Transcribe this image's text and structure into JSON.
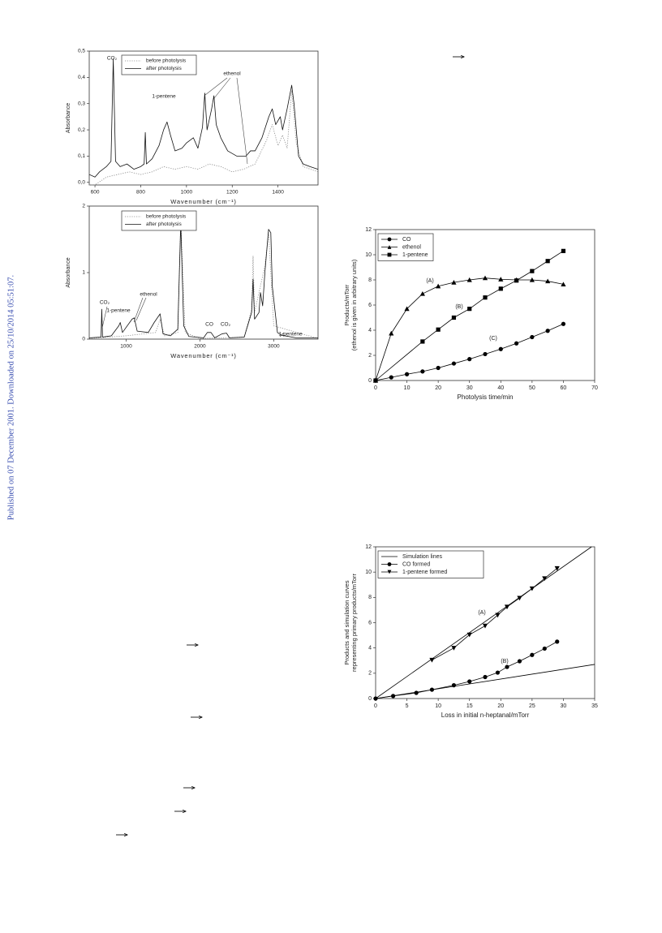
{
  "watermark": "Published on 07 December 2001. Downloaded on 25/10/2014 05:51:07.",
  "chart_data": [
    {
      "type": "line",
      "xlabel": "Wavenumber (cm⁻¹)",
      "ylabel": "Absorbance",
      "xlim": [
        575,
        1575
      ],
      "ylim": [
        -0.01,
        0.5
      ],
      "xticks": [
        600,
        800,
        1000,
        1200,
        1400
      ],
      "yticks": [
        {
          "value": 0,
          "label": "0,0"
        },
        {
          "value": 0.1,
          "label": "0,1"
        },
        {
          "value": 0.2,
          "label": "0,2"
        },
        {
          "value": 0.3,
          "label": "0,3"
        },
        {
          "value": 0.4,
          "label": "0,4"
        },
        {
          "value": 0.5,
          "label": "0,5"
        }
      ],
      "legend": "upper left",
      "series": [
        {
          "name": "before photolysis",
          "color": "#888888",
          "style": "dotted",
          "x": [
            575,
            600,
            650,
            700,
            750,
            800,
            850,
            900,
            950,
            1000,
            1050,
            1100,
            1150,
            1200,
            1250,
            1300,
            1350,
            1375,
            1400,
            1420,
            1440,
            1460,
            1480,
            1510,
            1575
          ],
          "values": [
            -0.01,
            -0.01,
            0.02,
            0.03,
            0.04,
            0.03,
            0.04,
            0.06,
            0.05,
            0.06,
            0.05,
            0.07,
            0.06,
            0.04,
            0.05,
            0.07,
            0.16,
            0.22,
            0.14,
            0.18,
            0.13,
            0.35,
            0.15,
            0.06,
            0.04
          ]
        },
        {
          "name": "after photolysis",
          "color": "#111111",
          "style": "solid",
          "x": [
            575,
            600,
            620,
            650,
            670,
            680,
            690,
            710,
            740,
            770,
            800,
            815,
            820,
            825,
            850,
            880,
            900,
            915,
            930,
            950,
            980,
            1000,
            1030,
            1050,
            1070,
            1080,
            1090,
            1110,
            1120,
            1130,
            1150,
            1180,
            1220,
            1260,
            1280,
            1300,
            1330,
            1360,
            1375,
            1390,
            1410,
            1420,
            1440,
            1460,
            1470,
            1490,
            1510,
            1540,
            1575
          ],
          "values": [
            0.03,
            0.02,
            0.04,
            0.06,
            0.08,
            0.47,
            0.08,
            0.06,
            0.07,
            0.05,
            0.06,
            0.07,
            0.19,
            0.07,
            0.09,
            0.14,
            0.2,
            0.23,
            0.18,
            0.12,
            0.13,
            0.15,
            0.17,
            0.13,
            0.21,
            0.34,
            0.2,
            0.28,
            0.33,
            0.22,
            0.17,
            0.12,
            0.1,
            0.1,
            0.12,
            0.12,
            0.17,
            0.25,
            0.28,
            0.22,
            0.25,
            0.2,
            0.28,
            0.37,
            0.3,
            0.1,
            0.07,
            0.06,
            0.05
          ]
        }
      ],
      "annotations": [
        "CO₂",
        "1-pentene",
        "ethenol"
      ]
    },
    {
      "type": "line",
      "xlabel": "Wavenumber (cm⁻¹)",
      "ylabel": "Absorbance",
      "xlim": [
        500,
        3600
      ],
      "ylim": [
        0,
        2
      ],
      "xticks": [
        1000,
        2000,
        3000
      ],
      "yticks": [
        0,
        1,
        2
      ],
      "legend": "upper left",
      "series": [
        {
          "name": "before photolysis",
          "color": "#888888",
          "style": "dotted",
          "x": [
            500,
            1000,
            1400,
            1460,
            1520,
            1700,
            1740,
            1800,
            2000,
            2600,
            2700,
            2720,
            2740,
            2820,
            2880,
            2930,
            3000,
            3600
          ],
          "values": [
            0.01,
            0.05,
            0.1,
            0.3,
            0.05,
            0.1,
            1.8,
            0.1,
            0.01,
            0.03,
            0.45,
            1.25,
            0.4,
            0.8,
            1.1,
            1.6,
            0.2,
            0.01
          ]
        },
        {
          "name": "after photolysis",
          "color": "#111111",
          "style": "solid",
          "x": [
            500,
            660,
            670,
            680,
            800,
            900,
            920,
            950,
            1080,
            1110,
            1150,
            1300,
            1380,
            1460,
            1500,
            1600,
            1700,
            1740,
            1780,
            1850,
            2050,
            2100,
            2150,
            2200,
            2300,
            2360,
            2400,
            2600,
            2700,
            2720,
            2740,
            2800,
            2820,
            2850,
            2880,
            2930,
            2960,
            2980,
            3050,
            3100,
            3300,
            3600
          ],
          "values": [
            0.02,
            0.03,
            0.45,
            0.03,
            0.05,
            0.2,
            0.25,
            0.1,
            0.3,
            0.32,
            0.12,
            0.1,
            0.25,
            0.38,
            0.08,
            0.05,
            0.15,
            1.75,
            0.2,
            0.04,
            0.02,
            0.1,
            0.1,
            0.02,
            0.08,
            0.09,
            0.02,
            0.03,
            0.4,
            0.9,
            0.3,
            0.4,
            0.7,
            0.5,
            1.0,
            1.65,
            1.6,
            0.8,
            0.1,
            0.06,
            0.02,
            0.02
          ]
        }
      ],
      "annotations": [
        "CO₂",
        "1-pentene",
        "ethenol",
        "CO",
        "CO₂",
        "1-pentene"
      ]
    },
    {
      "type": "line",
      "xlabel": "Photolysis time/min",
      "ylabel": [
        "Products/mTorr",
        "(ethenol is given in arbitrary units)"
      ],
      "xlim": [
        0,
        70
      ],
      "ylim": [
        0,
        12
      ],
      "xticks": [
        0,
        10,
        20,
        30,
        40,
        50,
        60,
        70
      ],
      "yticks": [
        0,
        2,
        4,
        6,
        8,
        10,
        12
      ],
      "legend": "upper left",
      "series": [
        {
          "name": "CO",
          "color": "#000000",
          "marker": "circle",
          "x": [
            0,
            5,
            10,
            15,
            20,
            25,
            30,
            35,
            40,
            45,
            50,
            55,
            60
          ],
          "values": [
            0,
            0.25,
            0.5,
            0.72,
            1.0,
            1.35,
            1.7,
            2.1,
            2.5,
            2.95,
            3.45,
            3.95,
            4.5
          ]
        },
        {
          "name": "ethenol",
          "color": "#000000",
          "marker": "triangle",
          "x": [
            0,
            5,
            10,
            15,
            20,
            25,
            30,
            35,
            40,
            45,
            50,
            55,
            60
          ],
          "values": [
            0,
            3.75,
            5.7,
            6.9,
            7.5,
            7.8,
            8.0,
            8.15,
            8.05,
            8.0,
            8.0,
            7.9,
            7.65
          ]
        },
        {
          "name": "1-pentene",
          "color": "#000000",
          "marker": "square",
          "x": [
            0,
            15,
            20,
            25,
            30,
            35,
            40,
            45,
            50,
            55,
            60
          ],
          "values": [
            0,
            3.1,
            4.05,
            5.0,
            5.7,
            6.6,
            7.3,
            7.95,
            8.7,
            9.5,
            10.3
          ]
        }
      ],
      "annotations": [
        "(A)",
        "(B)",
        "(C)"
      ]
    },
    {
      "type": "line",
      "xlabel": "Loss in initial n-heptanal/mTorr",
      "ylabel": [
        "Products and simulation curves",
        "representing primary products/mTorr"
      ],
      "xlim": [
        0,
        35
      ],
      "ylim": [
        0,
        12
      ],
      "xticks": [
        0,
        5,
        10,
        15,
        20,
        25,
        30,
        35
      ],
      "yticks": [
        0,
        2,
        4,
        6,
        8,
        10,
        12
      ],
      "legend": "upper left",
      "series": [
        {
          "name": "Simulation lines",
          "color": "#000000",
          "x": [
            0,
            34.5,
            null,
            0,
            35
          ],
          "values": [
            0,
            12,
            null,
            0,
            2.7
          ]
        },
        {
          "name": "CO formed",
          "color": "#000000",
          "marker": "circle",
          "x": [
            0,
            2.8,
            6.5,
            9,
            12.5,
            15,
            17.5,
            19.5,
            21,
            23,
            25,
            27,
            29
          ],
          "values": [
            0,
            0.2,
            0.45,
            0.7,
            1.05,
            1.35,
            1.7,
            2.05,
            2.5,
            2.95,
            3.45,
            3.95,
            4.5
          ]
        },
        {
          "name": "1-pentene formed",
          "color": "#000000",
          "marker": "triangle-down",
          "x": [
            9,
            12.5,
            15,
            17.5,
            19.5,
            21,
            23,
            25,
            27,
            29
          ],
          "values": [
            3.05,
            4.0,
            5.05,
            5.75,
            6.6,
            7.25,
            7.95,
            8.7,
            9.5,
            10.3
          ]
        }
      ],
      "annotations": [
        "(A)",
        "(B)"
      ]
    }
  ]
}
